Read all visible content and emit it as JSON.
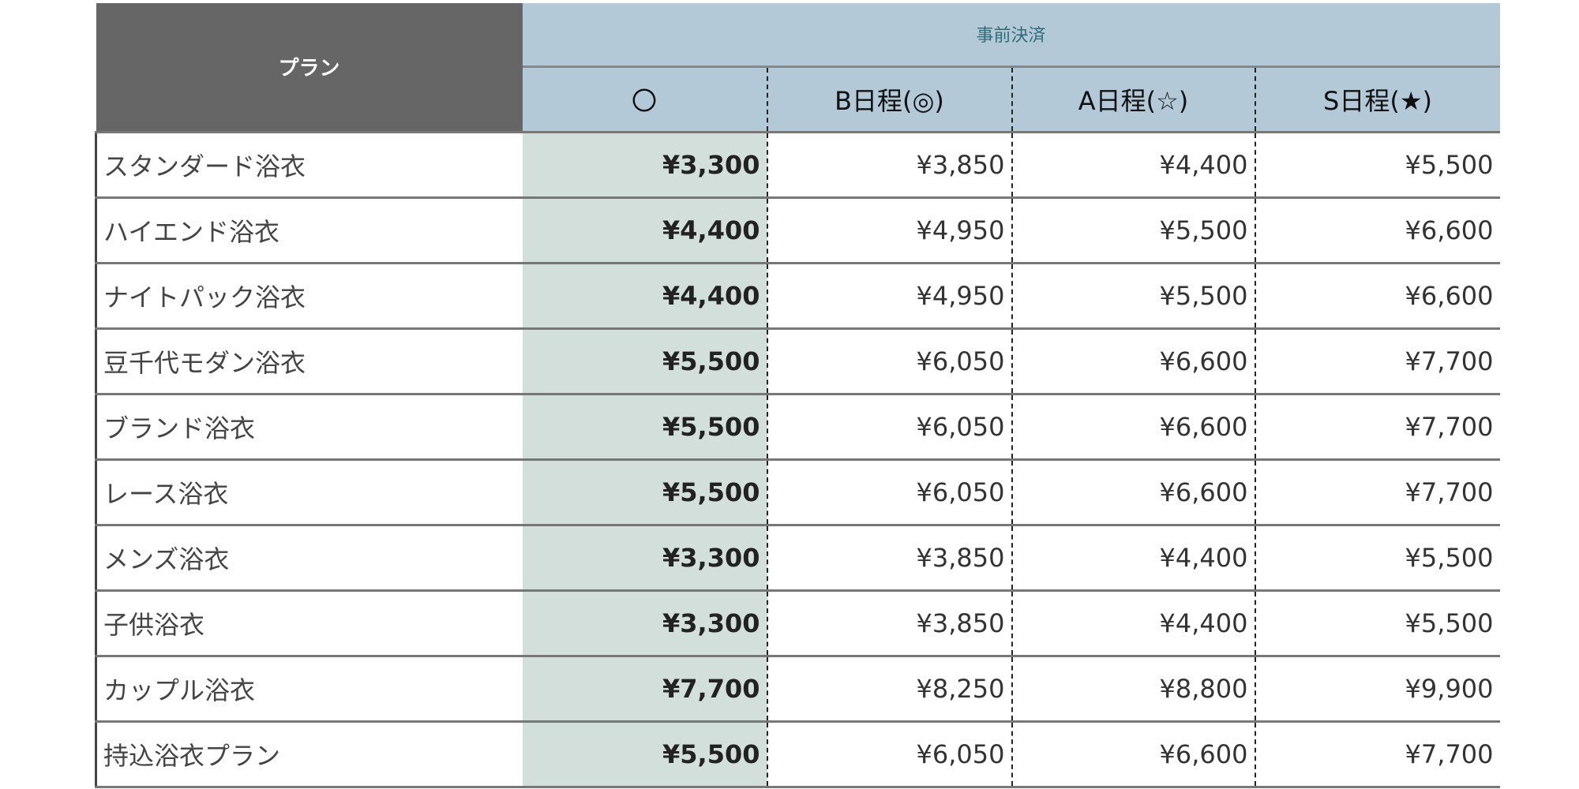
{
  "header": {
    "plan_label": "プラン",
    "group_label": "事前決済",
    "columns": [
      "〇",
      "B日程(◎)",
      "A日程(☆)",
      "S日程(★)"
    ]
  },
  "rows": [
    {
      "name": "スタンダード浴衣",
      "prices": [
        "¥3,300",
        "¥3,850",
        "¥4,400",
        "¥5,500"
      ]
    },
    {
      "name": "ハイエンド浴衣",
      "prices": [
        "¥4,400",
        "¥4,950",
        "¥5,500",
        "¥6,600"
      ]
    },
    {
      "name": "ナイトパック浴衣",
      "prices": [
        "¥4,400",
        "¥4,950",
        "¥5,500",
        "¥6,600"
      ]
    },
    {
      "name": "豆千代モダン浴衣",
      "prices": [
        "¥5,500",
        "¥6,050",
        "¥6,600",
        "¥7,700"
      ]
    },
    {
      "name": "ブランド浴衣",
      "prices": [
        "¥5,500",
        "¥6,050",
        "¥6,600",
        "¥7,700"
      ]
    },
    {
      "name": "レース浴衣",
      "prices": [
        "¥5,500",
        "¥6,050",
        "¥6,600",
        "¥7,700"
      ]
    },
    {
      "name": "メンズ浴衣",
      "prices": [
        "¥3,300",
        "¥3,850",
        "¥4,400",
        "¥5,500"
      ]
    },
    {
      "name": "子供浴衣",
      "prices": [
        "¥3,300",
        "¥3,850",
        "¥4,400",
        "¥5,500"
      ]
    },
    {
      "name": "カップル浴衣",
      "prices": [
        "¥7,700",
        "¥8,250",
        "¥8,800",
        "¥9,900"
      ]
    },
    {
      "name": "持込浴衣プラン",
      "prices": [
        "¥5,500",
        "¥6,050",
        "¥6,600",
        "¥7,700"
      ]
    }
  ],
  "colors": {
    "plan_header": "#666666",
    "group_header": "#b4c9d8",
    "highlight_column": "#d3dfda"
  }
}
